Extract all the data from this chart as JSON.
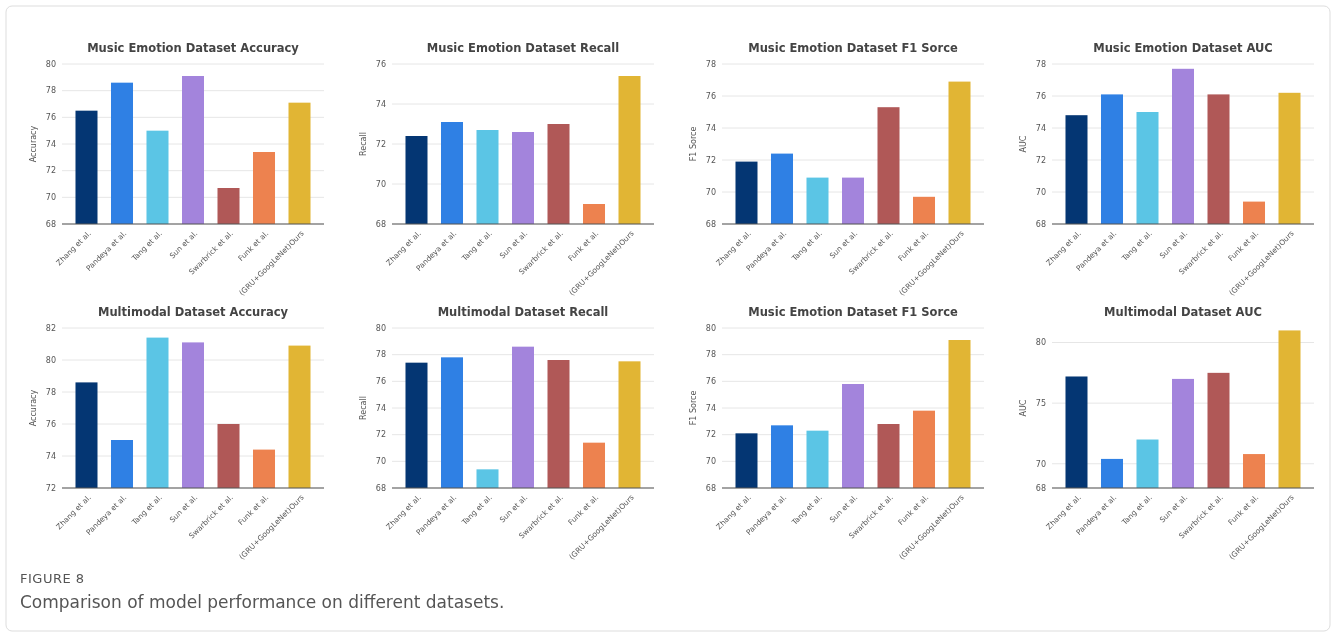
{
  "chart_data": [
    {
      "type": "bar",
      "title": "Music Emotion Dataset Accuracy",
      "ylabel": "Accuracy",
      "categories": [
        "Zhang et al.",
        "Pandeya et al.",
        "Tang et al.",
        "Sun et al.",
        "Swarbrick et al.",
        "Funk et al.",
        "(GRU+GoogLeNet)Ours"
      ],
      "values": [
        76.5,
        78.6,
        75.0,
        79.1,
        70.7,
        73.4,
        77.1
      ],
      "colors": [
        "#043673",
        "#2f80e4",
        "#5bc5e5",
        "#a384dc",
        "#b05857",
        "#ed824f",
        "#e1b534"
      ],
      "ylim": [
        68,
        80
      ],
      "yticks": [
        68,
        70,
        72,
        74,
        76,
        78,
        80
      ],
      "grid": "y",
      "annotations": [
        "FIGURE 8",
        "Comparison of model performance on different datasets."
      ]
    },
    {
      "type": "bar",
      "title": "Music Emotion Dataset Recall",
      "ylabel": "Recall",
      "categories": [
        "Zhang et al.",
        "Pandeya et al.",
        "Tang et al.",
        "Sun et al.",
        "Swarbrick et al.",
        "Funk et al.",
        "(GRU+GoogLeNet)Ours"
      ],
      "values": [
        72.4,
        73.1,
        72.7,
        72.6,
        73.0,
        69.0,
        75.4
      ],
      "colors": [
        "#043673",
        "#2f80e4",
        "#5bc5e5",
        "#a384dc",
        "#b05857",
        "#ed824f",
        "#e1b534"
      ],
      "ylim": [
        68,
        76
      ],
      "yticks": [
        68,
        70,
        72,
        74,
        76
      ],
      "grid": "y"
    },
    {
      "type": "bar",
      "title": "Music Emotion Dataset F1 Sorce",
      "ylabel": "F1 Sorce",
      "categories": [
        "Zhang et al.",
        "Pandeya et al.",
        "Tang et al.",
        "Sun et al.",
        "Swarbrick et al.",
        "Funk et al.",
        "(GRU+GoogLeNet)Ours"
      ],
      "values": [
        71.9,
        72.4,
        70.9,
        70.9,
        75.3,
        69.7,
        76.9
      ],
      "colors": [
        "#043673",
        "#2f80e4",
        "#5bc5e5",
        "#a384dc",
        "#b05857",
        "#ed824f",
        "#e1b534"
      ],
      "ylim": [
        68,
        78
      ],
      "yticks": [
        68,
        70,
        72,
        74,
        76,
        78
      ],
      "grid": "y"
    },
    {
      "type": "bar",
      "title": "Music Emotion Dataset AUC",
      "ylabel": "AUC",
      "categories": [
        "Zhang et al.",
        "Pandeya et al.",
        "Tang et al.",
        "Sun et al.",
        "Swarbrick et al.",
        "Funk et al.",
        "(GRU+GoogLeNet)Ours"
      ],
      "values": [
        74.8,
        76.1,
        75.0,
        77.7,
        76.1,
        69.4,
        76.2
      ],
      "colors": [
        "#043673",
        "#2f80e4",
        "#5bc5e5",
        "#a384dc",
        "#b05857",
        "#ed824f",
        "#e1b534"
      ],
      "ylim": [
        68,
        78
      ],
      "yticks": [
        68,
        70,
        72,
        74,
        76,
        78
      ],
      "grid": "y"
    },
    {
      "type": "bar",
      "title": "Multimodal Dataset Accuracy",
      "ylabel": "Accuracy",
      "categories": [
        "Zhang et al.",
        "Pandeya et al.",
        "Tang et al.",
        "Sun et al.",
        "Swarbrick et al.",
        "Funk et al.",
        "(GRU+GoogLeNet)Ours"
      ],
      "values": [
        78.6,
        75.0,
        81.4,
        81.1,
        76.0,
        74.4,
        80.9
      ],
      "colors": [
        "#043673",
        "#2f80e4",
        "#5bc5e5",
        "#a384dc",
        "#b05857",
        "#ed824f",
        "#e1b534"
      ],
      "ylim": [
        72,
        82
      ],
      "yticks": [
        72,
        74,
        76,
        78,
        80,
        82
      ],
      "grid": "y"
    },
    {
      "type": "bar",
      "title": "Multimodal Dataset Recall",
      "ylabel": "Recall",
      "categories": [
        "Zhang et al.",
        "Pandeya et al.",
        "Tang et al.",
        "Sun et al.",
        "Swarbrick et al.",
        "Funk et al.",
        "(GRU+GoogLeNet)Ours"
      ],
      "values": [
        77.4,
        77.8,
        69.4,
        78.6,
        77.6,
        71.4,
        77.5
      ],
      "colors": [
        "#043673",
        "#2f80e4",
        "#5bc5e5",
        "#a384dc",
        "#b05857",
        "#ed824f",
        "#e1b534"
      ],
      "ylim": [
        68,
        80
      ],
      "yticks": [
        68,
        70,
        72,
        74,
        76,
        78,
        80
      ],
      "grid": "y"
    },
    {
      "type": "bar",
      "title": "Music Emotion Dataset F1 Sorce",
      "ylabel": "F1 Sorce",
      "categories": [
        "Zhang et al.",
        "Pandeya et al.",
        "Tang et al.",
        "Sun et al.",
        "Swarbrick et al.",
        "Funk et al.",
        "(GRU+GoogLeNet)Ours"
      ],
      "values": [
        72.1,
        72.7,
        72.3,
        75.8,
        72.8,
        73.8,
        79.1
      ],
      "colors": [
        "#043673",
        "#2f80e4",
        "#5bc5e5",
        "#a384dc",
        "#b05857",
        "#ed824f",
        "#e1b534"
      ],
      "ylim": [
        68,
        80
      ],
      "yticks": [
        68,
        70,
        72,
        74,
        76,
        78,
        80
      ],
      "grid": "y"
    },
    {
      "type": "bar",
      "title": "Multimodal Dataset AUC",
      "ylabel": "AUC",
      "categories": [
        "Zhang et al.",
        "Pandeya et al.",
        "Tang et al.",
        "Sun et al.",
        "Swarbrick et al.",
        "Funk et al.",
        "(GRU+GoogLeNet)Ours"
      ],
      "values": [
        77.2,
        70.4,
        72.0,
        77.0,
        77.5,
        70.8,
        81.0
      ],
      "colors": [
        "#043673",
        "#2f80e4",
        "#5bc5e5",
        "#a384dc",
        "#b05857",
        "#ed824f",
        "#e1b534"
      ],
      "ylim": [
        68,
        81.2
      ],
      "yticks": [
        68,
        70,
        75,
        80
      ],
      "grid": "y"
    }
  ]
}
